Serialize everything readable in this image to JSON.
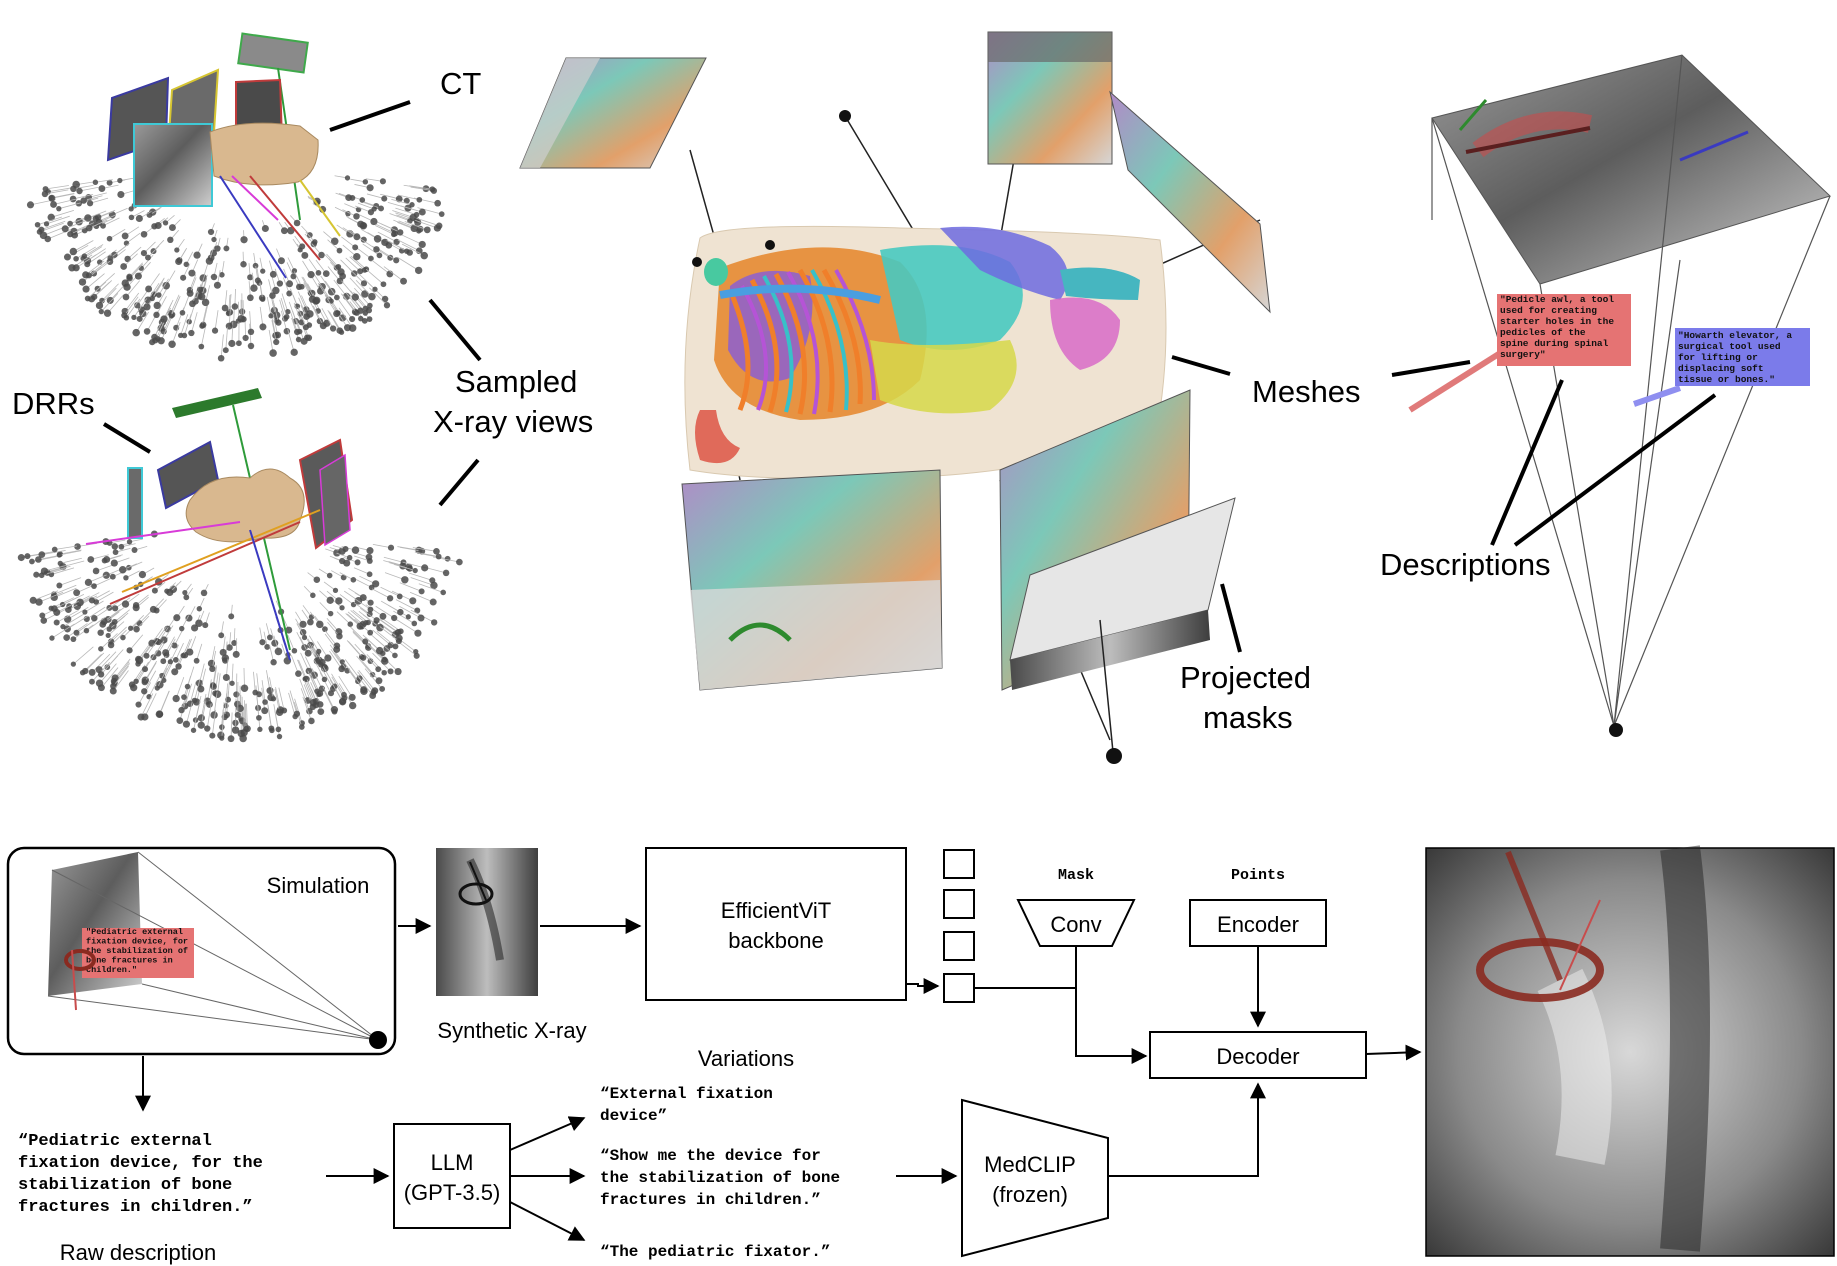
{
  "top": {
    "labels": {
      "ct": "CT",
      "sampled_views_1": "Sampled",
      "sampled_views_2": "X-ray views",
      "drrs": "DRRs",
      "meshes": "Meshes",
      "projected_masks_1": "Projected",
      "projected_masks_2": "masks",
      "descriptions": "Descriptions"
    },
    "desc_boxes": [
      {
        "text": [
          "\"Pedicle awl, a tool",
          "used for creating",
          "starter holes in the",
          "pedicles of the",
          "spine during spinal",
          "surgery\""
        ],
        "color": "#e57373"
      },
      {
        "text": [
          "\"Howarth elevator, a",
          "surgical tool used",
          "for lifting or",
          "displacing soft",
          "tissue or bones.\""
        ],
        "color": "#7b7bea"
      }
    ]
  },
  "pipeline": {
    "simulation": "Simulation",
    "sim_box_text": [
      "\"Pediatric external",
      "fixation device, for",
      "the stabilization of",
      "bone fractures in",
      "children.\""
    ],
    "synthetic_xray": "Synthetic X-ray",
    "backbone_1": "EfficientViT",
    "backbone_2": "backbone",
    "mask_title": "Mask",
    "conv": "Conv",
    "points_title": "Points",
    "encoder": "Encoder",
    "decoder": "Decoder",
    "variations_title": "Variations",
    "variations": [
      [
        "“External fixation",
        "device”"
      ],
      [
        "“Show me the device for",
        "the stabilization of bone",
        "fractures in children.”"
      ],
      [
        "“The pediatric fixator.”"
      ]
    ],
    "raw_desc": [
      "“Pediatric external",
      "fixation device, for the",
      "stabilization of bone",
      "fractures in children.”"
    ],
    "raw_desc_label": "Raw description",
    "llm_1": "LLM",
    "llm_2": "(GPT-3.5)",
    "medclip_1": "MedCLIP",
    "medclip_2": "(frozen)"
  },
  "colors": {
    "skin": "#d9b88f",
    "desc_red": "#e57373",
    "desc_blue": "#7b7bea",
    "dark_tool": "#8a2a20"
  }
}
